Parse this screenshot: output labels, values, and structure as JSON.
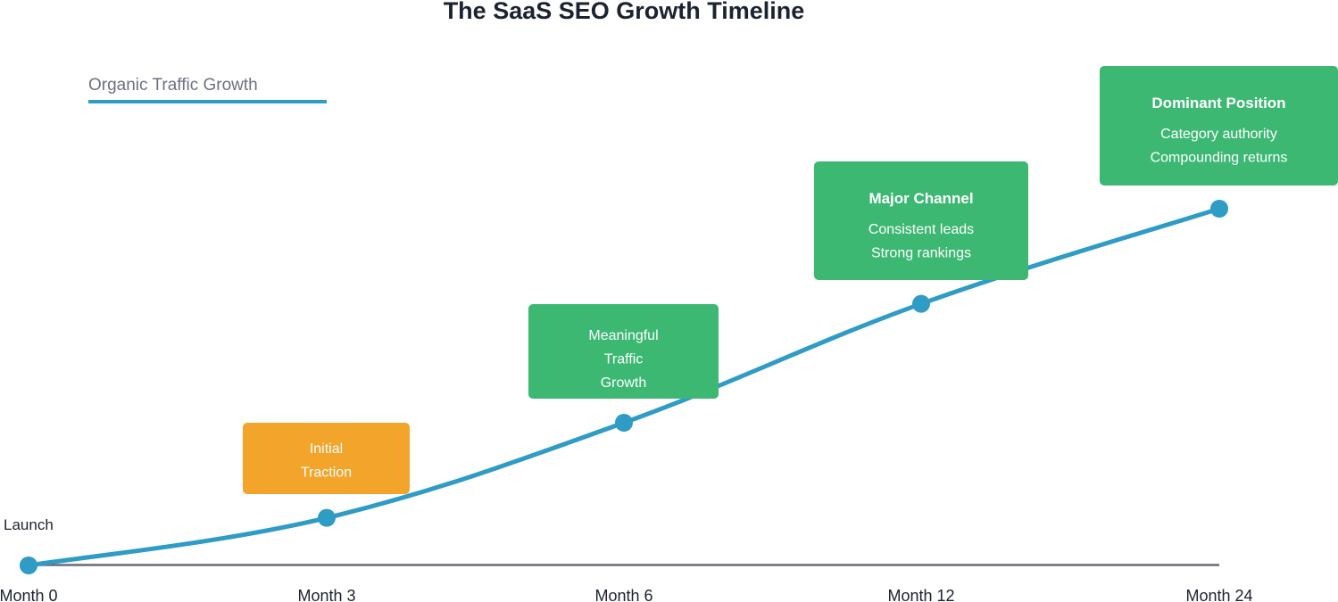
{
  "chart_data": {
    "type": "line",
    "title": "The SaaS SEO Growth Timeline",
    "xlabel": "",
    "ylabel": "",
    "grid": false,
    "legend": {
      "placement": "top-left",
      "entries": [
        {
          "name": "Organic Traffic Growth",
          "color": "#2e9cc4"
        }
      ]
    },
    "categories": [
      "Month 0",
      "Month 3",
      "Month 6",
      "Month 12",
      "Month 24"
    ],
    "series": [
      {
        "name": "Organic Traffic Growth",
        "color": "#2e9cc4",
        "values": [
          0,
          10,
          30,
          55,
          75
        ]
      }
    ],
    "ylim": [
      0,
      75
    ],
    "annotations": [
      {
        "index": 0,
        "lines": [
          "Launch"
        ],
        "style": "plain"
      },
      {
        "index": 1,
        "lines": [
          "Initial",
          "Traction"
        ],
        "style": "box",
        "color": "#f2a52a",
        "heading": false
      },
      {
        "index": 2,
        "lines": [
          "Meaningful",
          "Traffic",
          "Growth"
        ],
        "style": "box",
        "color": "#3cb872",
        "heading": false
      },
      {
        "index": 3,
        "lines": [
          "Major Channel",
          "Consistent leads",
          "Strong rankings"
        ],
        "style": "box",
        "color": "#3cb872",
        "heading": true
      },
      {
        "index": 4,
        "lines": [
          "Dominant Position",
          "Category authority",
          "Compounding returns"
        ],
        "style": "box",
        "color": "#3cb872",
        "heading": true
      }
    ],
    "axis_color": "#6b6b78"
  }
}
